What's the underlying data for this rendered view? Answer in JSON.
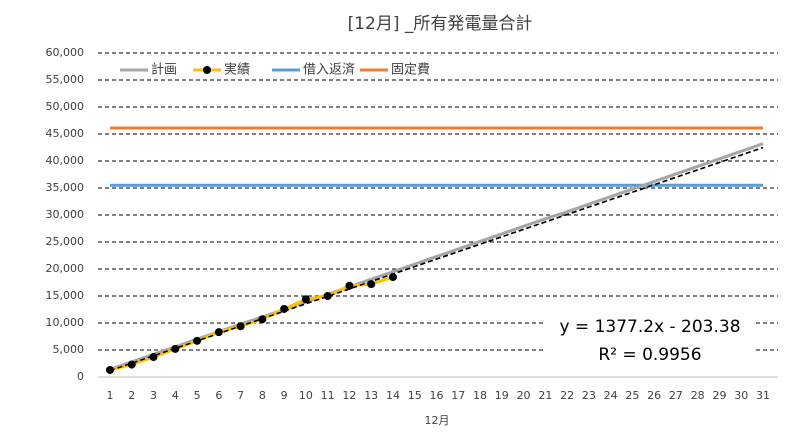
{
  "chart_data": {
    "type": "line",
    "title": "[12月] _所有発電量合計",
    "x_label": "12月",
    "categories": [
      "1",
      "2",
      "3",
      "4",
      "5",
      "6",
      "7",
      "8",
      "9",
      "10",
      "11",
      "12",
      "13",
      "14",
      "15",
      "16",
      "17",
      "18",
      "19",
      "20",
      "21",
      "22",
      "23",
      "24",
      "25",
      "26",
      "27",
      "28",
      "29",
      "30",
      "31"
    ],
    "series": [
      {
        "name": "計画",
        "color": "#a5a5a5",
        "values": [
          1400,
          2800,
          4200,
          5600,
          7000,
          8400,
          9800,
          11100,
          12500,
          13900,
          15300,
          16700,
          18100,
          19500,
          20900,
          22300,
          23700,
          25100,
          26500,
          27900,
          29300,
          30600,
          32000,
          33400,
          34800,
          36200,
          37600,
          39000,
          40400,
          41800,
          43200
        ]
      },
      {
        "name": "実績",
        "color": "#ffc000",
        "marker": true,
        "values": [
          1300,
          2300,
          3700,
          5200,
          6700,
          8300,
          9400,
          10700,
          12600,
          14400,
          15000,
          16900,
          17200,
          18500,
          null,
          null,
          null,
          null,
          null,
          null,
          null,
          null,
          null,
          null,
          null,
          null,
          null,
          null,
          null,
          null,
          null
        ]
      },
      {
        "name": "借入返済",
        "color": "#5b9bd5",
        "values": [
          35500,
          35500,
          35500,
          35500,
          35500,
          35500,
          35500,
          35500,
          35500,
          35500,
          35500,
          35500,
          35500,
          35500,
          35500,
          35500,
          35500,
          35500,
          35500,
          35500,
          35500,
          35500,
          35500,
          35500,
          35500,
          35500,
          35500,
          35500,
          35500,
          35500,
          35500
        ]
      },
      {
        "name": "固定費",
        "color": "#ed7d31",
        "values": [
          46100,
          46100,
          46100,
          46100,
          46100,
          46100,
          46100,
          46100,
          46100,
          46100,
          46100,
          46100,
          46100,
          46100,
          46100,
          46100,
          46100,
          46100,
          46100,
          46100,
          46100,
          46100,
          46100,
          46100,
          46100,
          46100,
          46100,
          46100,
          46100,
          46100,
          46100
        ]
      }
    ],
    "trendline": {
      "slope": 1377.2,
      "intercept": -203.38,
      "equation": "y = 1377.2x - 203.38",
      "r2": "R² = 0.9956"
    },
    "ylim": [
      0,
      60000
    ],
    "yticks": [
      0,
      {
        "value": 5000,
        "label": "5,000"
      },
      {
        "value": 10000,
        "label": "10,000"
      },
      {
        "value": 15000,
        "label": "15,000"
      },
      {
        "value": 20000,
        "label": "20,000"
      },
      {
        "value": 25000,
        "label": "25,000"
      },
      {
        "value": 30000,
        "label": "30,000"
      },
      {
        "value": 35000,
        "label": "35,000"
      },
      {
        "value": 40000,
        "label": "40,000"
      },
      {
        "value": 45000,
        "label": "45,000"
      },
      {
        "value": 50000,
        "label": "50,000"
      },
      {
        "value": 55000,
        "label": "55,000"
      },
      {
        "value": 60000,
        "label": "60,000"
      }
    ],
    "grid": true,
    "legend": "top-left"
  }
}
